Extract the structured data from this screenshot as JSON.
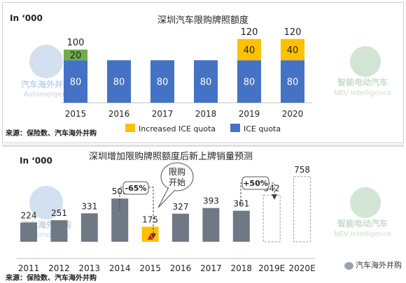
{
  "top_chart": {
    "title": "深圳汽车限购牌照额度",
    "unit": "In ‘000",
    "source": "来源：保险数、汽车海外并购",
    "legend": {
      "increased": "Increased ICE quota",
      "ice": "ICE quota"
    }
  },
  "bottom_chart": {
    "title": "深圳增加限购牌照额度后新上牌销量预测",
    "unit": "In ‘000",
    "source": "来源：保险数、汽车海外并购",
    "callout": "限购开始",
    "annotations": {
      "drop": "-65%",
      "rise": "+50%"
    },
    "watermark": "汽车海外并购"
  },
  "watermarks": {
    "automergers_cn": "汽车海外并购",
    "automergers_en": "Automergers",
    "nev_cn": "智能电动汽车",
    "nev_en": "NEV Intelligence"
  },
  "colors": {
    "ice": "#4472C4",
    "increase_2015": "#70AD47",
    "increase": "#FFC000",
    "grey": "#6F7985",
    "highlight": "#FFC000",
    "marker": "#E21A1A"
  },
  "chart_data": [
    {
      "type": "bar",
      "stacked": true,
      "title": "深圳汽车限购牌照额度",
      "ylabel": "In ‘000",
      "categories": [
        "2015",
        "2016",
        "2017",
        "2018",
        "2019",
        "2020"
      ],
      "series": [
        {
          "name": "ICE quota",
          "values": [
            80,
            80,
            80,
            80,
            80,
            80
          ]
        },
        {
          "name": "Increased ICE quota",
          "values": [
            20,
            null,
            null,
            null,
            40,
            40
          ]
        }
      ],
      "totals": [
        100,
        null,
        null,
        null,
        120,
        120
      ],
      "ylim": [
        0,
        120
      ],
      "legend": "bottom-right"
    },
    {
      "type": "bar",
      "title": "深圳增加限购牌照额度后新上牌销量预测",
      "ylabel": "In ‘000",
      "categories": [
        "2011",
        "2012",
        "2013",
        "2014",
        "2015",
        "2016",
        "2017",
        "2018",
        "2019E",
        "2020E"
      ],
      "values": [
        224,
        251,
        331,
        503,
        175,
        327,
        393,
        361,
        542,
        758
      ],
      "projected": [
        false,
        false,
        false,
        false,
        false,
        false,
        false,
        false,
        true,
        true
      ],
      "ylim": [
        0,
        800
      ]
    }
  ]
}
